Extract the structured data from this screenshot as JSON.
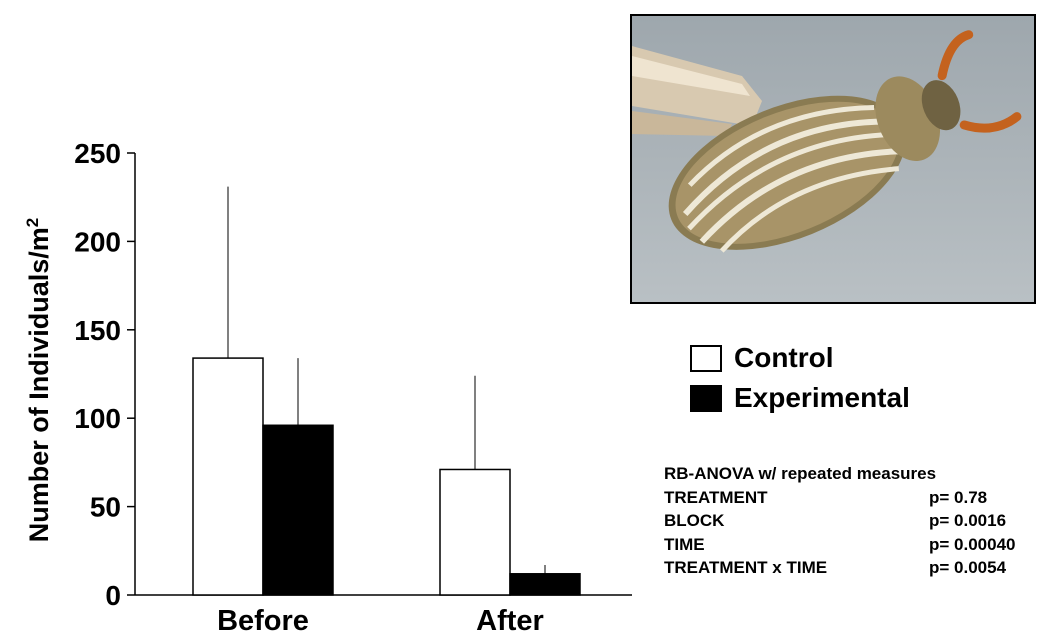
{
  "chart_data": {
    "type": "bar",
    "categories": [
      "Before",
      "After"
    ],
    "ylabel": "Number of Individuals/m",
    "ylabel_superscript": "2",
    "ylim": [
      0,
      250
    ],
    "yticks": [
      0,
      50,
      100,
      150,
      200,
      250
    ],
    "series": [
      {
        "name": "Control",
        "color": "#ffffff",
        "values": [
          134,
          71
        ],
        "error_upper": [
          231,
          124
        ]
      },
      {
        "name": "Experimental",
        "color": "#000000",
        "values": [
          96,
          12
        ],
        "error_upper": [
          134,
          17
        ]
      }
    ],
    "legend_position": "right"
  },
  "photo": {
    "icon": "beetle-photo"
  },
  "stats": {
    "title": "RB-ANOVA w/ repeated measures",
    "rows": [
      {
        "term": "TREATMENT",
        "p": "p= 0.78"
      },
      {
        "term": "BLOCK",
        "p": "p= 0.0016"
      },
      {
        "term": "TIME",
        "p": "p= 0.00040"
      },
      {
        "term": "TREATMENT x TIME",
        "p": "p= 0.0054"
      }
    ]
  }
}
